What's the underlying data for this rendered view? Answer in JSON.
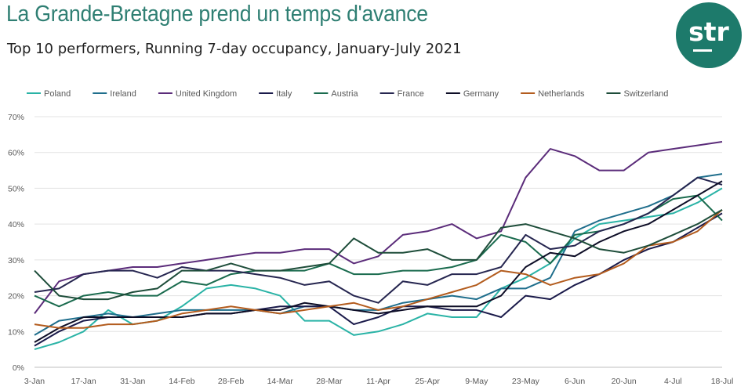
{
  "title": "La Grande-Bretagne prend un temps d'avance",
  "subtitle": "Top 10 performers, Running 7-day occupancy, January-July 2021",
  "logo": {
    "text": "str"
  },
  "chart_data": {
    "type": "line",
    "x": [
      "3-Jan",
      "10-Jan",
      "17-Jan",
      "24-Jan",
      "31-Jan",
      "7-Feb",
      "14-Feb",
      "21-Feb",
      "28-Feb",
      "7-Mar",
      "14-Mar",
      "21-Mar",
      "28-Mar",
      "4-Apr",
      "11-Apr",
      "18-Apr",
      "25-Apr",
      "2-May",
      "9-May",
      "16-May",
      "23-May",
      "30-May",
      "6-Jun",
      "13-Jun",
      "20-Jun",
      "27-Jun",
      "4-Jul",
      "11-Jul",
      "18-Jul"
    ],
    "x_tick_labels": [
      "3-Jan",
      "17-Jan",
      "31-Jan",
      "14-Feb",
      "28-Feb",
      "14-Mar",
      "28-Mar",
      "11-Apr",
      "25-Apr",
      "9-May",
      "23-May",
      "6-Jun",
      "20-Jun",
      "4-Jul",
      "18-Jul"
    ],
    "y_tick_labels": [
      "0%",
      "10%",
      "20%",
      "30%",
      "40%",
      "50%",
      "60%",
      "70%"
    ],
    "ylim": [
      0,
      70
    ],
    "grid": true,
    "legend_position": "top",
    "series": [
      {
        "name": "Poland",
        "color": "#2ab3a6",
        "values": [
          5,
          7,
          10,
          16,
          12,
          13,
          17,
          22,
          23,
          22,
          20,
          13,
          13,
          9,
          10,
          12,
          15,
          14,
          14,
          22,
          25,
          29,
          36,
          40,
          41,
          42,
          43,
          46,
          50
        ]
      },
      {
        "name": "Ireland",
        "color": "#1f6e8c",
        "values": [
          9,
          13,
          14,
          15,
          14,
          15,
          16,
          16,
          16,
          16,
          15,
          17,
          17,
          16,
          16,
          18,
          19,
          20,
          19,
          22,
          22,
          25,
          38,
          41,
          43,
          45,
          48,
          53,
          54
        ]
      },
      {
        "name": "United Kingdom",
        "color": "#5b2c7a",
        "values": [
          15,
          24,
          26,
          27,
          28,
          28,
          29,
          30,
          31,
          32,
          32,
          33,
          33,
          29,
          31,
          37,
          38,
          40,
          36,
          38,
          53,
          61,
          59,
          55,
          55,
          60,
          61,
          62,
          63
        ]
      },
      {
        "name": "Italy",
        "color": "#1a1a4a",
        "values": [
          6,
          10,
          13,
          14,
          14,
          14,
          14,
          15,
          15,
          16,
          17,
          17,
          17,
          12,
          14,
          17,
          17,
          16,
          16,
          14,
          20,
          19,
          23,
          26,
          30,
          33,
          35,
          39,
          43
        ]
      },
      {
        "name": "Austria",
        "color": "#1a6b4e",
        "values": [
          20,
          17,
          20,
          21,
          20,
          20,
          24,
          23,
          26,
          27,
          27,
          27,
          29,
          26,
          26,
          27,
          27,
          28,
          30,
          37,
          35,
          29,
          37,
          38,
          40,
          43,
          47,
          48,
          41
        ]
      },
      {
        "name": "France",
        "color": "#262650",
        "values": [
          21,
          22,
          26,
          27,
          27,
          25,
          28,
          27,
          27,
          26,
          25,
          23,
          24,
          20,
          18,
          24,
          23,
          26,
          26,
          28,
          37,
          33,
          34,
          38,
          40,
          43,
          48,
          53,
          51
        ]
      },
      {
        "name": "Germany",
        "color": "#0d0d26",
        "values": [
          7,
          11,
          14,
          14,
          14,
          14,
          14,
          15,
          15,
          16,
          16,
          18,
          17,
          16,
          15,
          16,
          17,
          17,
          17,
          20,
          28,
          32,
          31,
          35,
          38,
          40,
          44,
          48,
          52
        ]
      },
      {
        "name": "Netherlands",
        "color": "#b35c1e",
        "values": [
          12,
          11,
          11,
          12,
          12,
          13,
          15,
          16,
          17,
          16,
          15,
          16,
          17,
          18,
          16,
          17,
          19,
          21,
          23,
          27,
          26,
          23,
          25,
          26,
          29,
          34,
          35,
          38,
          44
        ]
      },
      {
        "name": "Switzerland",
        "color": "#1e4d3a",
        "values": [
          27,
          20,
          19,
          19,
          21,
          22,
          27,
          27,
          29,
          27,
          27,
          28,
          29,
          36,
          32,
          32,
          33,
          30,
          30,
          39,
          40,
          38,
          36,
          33,
          32,
          34,
          37,
          40,
          44
        ]
      }
    ]
  }
}
